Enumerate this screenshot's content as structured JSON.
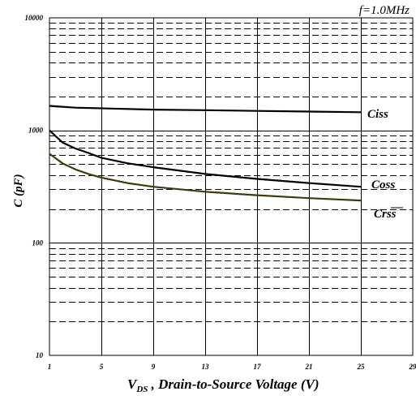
{
  "chart_data": {
    "type": "line",
    "annotation": "f=1.0MHz",
    "xlabel_main": "V",
    "xlabel_sub": "DS",
    "xlabel_rest": " , Drain-to-Source Voltage (V)",
    "ylabel": "C (pF)",
    "xlim": [
      1,
      29
    ],
    "ylim": [
      10,
      10000
    ],
    "yscale": "log",
    "xticks": [
      1,
      5,
      9,
      13,
      17,
      21,
      25,
      29
    ],
    "yticks": [
      10,
      100,
      1000,
      10000
    ],
    "ytick_labels": [
      "10",
      "100",
      "1000",
      "10000"
    ],
    "grid": "x major solid, y minor dashed",
    "series": [
      {
        "name": "Ciss",
        "color": "#000000",
        "x": [
          1,
          2,
          3,
          5,
          9,
          13,
          17,
          21,
          25
        ],
        "y": [
          1650,
          1620,
          1590,
          1570,
          1530,
          1510,
          1490,
          1470,
          1450
        ]
      },
      {
        "name": "Coss",
        "color": "#000000",
        "x": [
          1,
          2,
          3,
          4,
          5,
          7,
          9,
          13,
          17,
          21,
          25
        ],
        "y": [
          1000,
          780,
          690,
          630,
          570,
          510,
          470,
          410,
          370,
          340,
          315
        ]
      },
      {
        "name": "Crss",
        "color": "#3d3b10",
        "x": [
          1,
          2,
          3,
          4,
          5,
          7,
          9,
          13,
          17,
          21,
          25
        ],
        "y": [
          620,
          510,
          450,
          410,
          380,
          340,
          315,
          285,
          265,
          250,
          238
        ]
      }
    ]
  }
}
